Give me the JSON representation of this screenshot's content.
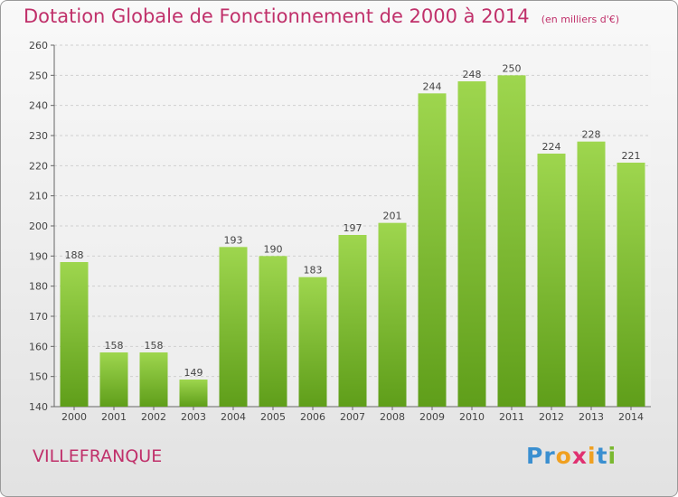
{
  "title": "Dotation Globale de Fonctionnement de 2000 à 2014",
  "unit_note": "(en milliers d'€)",
  "commune": "VILLEFRANQUE",
  "logo": {
    "text": "Proxiti",
    "letters": [
      {
        "ch": "P",
        "color": "#3a8fd0"
      },
      {
        "ch": "r",
        "color": "#3a8fd0"
      },
      {
        "ch": "o",
        "color": "#f0a020"
      },
      {
        "ch": "x",
        "color": "#e03070"
      },
      {
        "ch": "i",
        "color": "#f0a020"
      },
      {
        "ch": "t",
        "color": "#3a8fd0"
      },
      {
        "ch": "i",
        "color": "#7ab830"
      }
    ]
  },
  "colors": {
    "bar_top": "#9ed64e",
    "bar_bottom": "#5f9e1a",
    "accent": "#c0306a",
    "grid": "#cfcfcf"
  },
  "chart_data": {
    "type": "bar",
    "title": "Dotation Globale de Fonctionnement de 2000 à 2014",
    "subtitle": "(en milliers d'€)",
    "categories": [
      "2000",
      "2001",
      "2002",
      "2003",
      "2004",
      "2005",
      "2006",
      "2007",
      "2008",
      "2009",
      "2010",
      "2011",
      "2012",
      "2013",
      "2014"
    ],
    "values": [
      188,
      158,
      158,
      149,
      193,
      190,
      183,
      197,
      201,
      244,
      248,
      250,
      224,
      228,
      221
    ],
    "ylim": [
      140,
      260
    ],
    "yticks": [
      140,
      150,
      160,
      170,
      180,
      190,
      200,
      210,
      220,
      230,
      240,
      250,
      260
    ],
    "grid": true,
    "xlabel": "",
    "ylabel": ""
  }
}
